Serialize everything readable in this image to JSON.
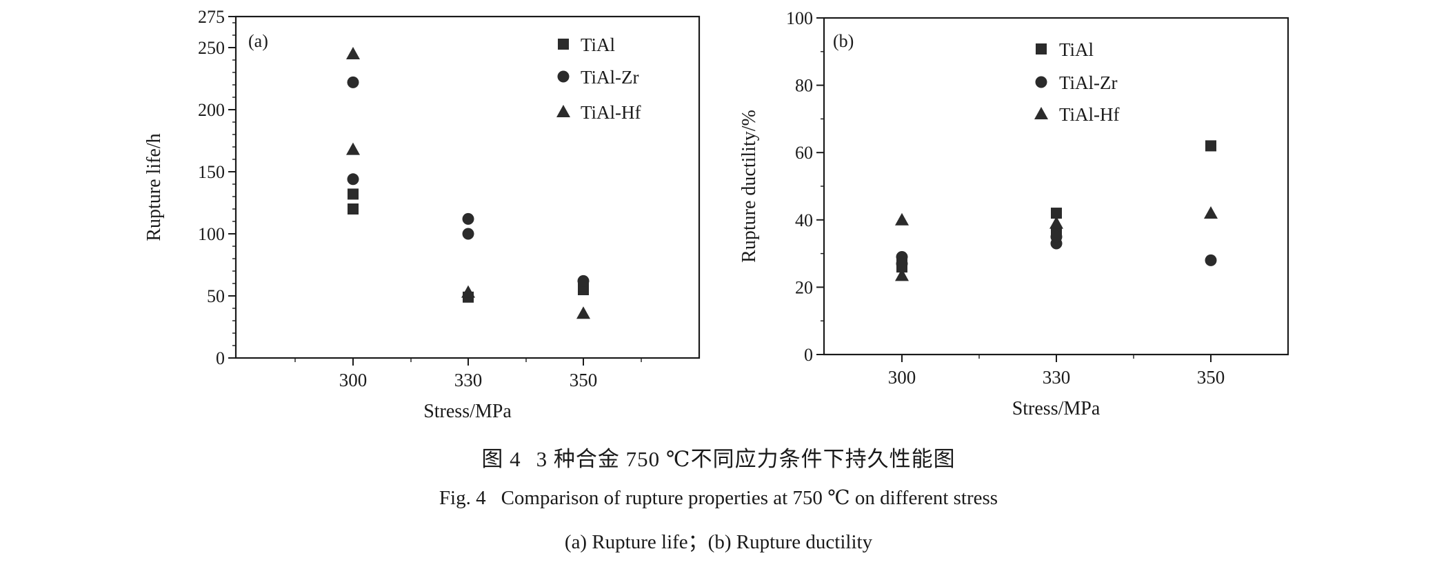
{
  "chart_data": [
    {
      "type": "scatter",
      "panel_label": "(a)",
      "xlabel": "Stress/MPa",
      "ylabel": "Rupture life/h",
      "categories": [
        "300",
        "330",
        "350"
      ],
      "ylim": [
        0,
        275
      ],
      "yticks": [
        0,
        50,
        100,
        150,
        200,
        250,
        275
      ],
      "ytick_labels": [
        "0",
        "50",
        "100",
        "150",
        "200",
        "250",
        "275"
      ],
      "legend_position": "top-right",
      "series": [
        {
          "name": "TiAl",
          "marker": "square",
          "points": [
            [
              300,
              132
            ],
            [
              300,
              120
            ],
            [
              330,
              49
            ],
            [
              350,
              55
            ],
            [
              350,
              58
            ]
          ]
        },
        {
          "name": "TiAl-Zr",
          "marker": "circle",
          "points": [
            [
              300,
              222
            ],
            [
              300,
              144
            ],
            [
              330,
              112
            ],
            [
              330,
              100
            ],
            [
              350,
              62
            ]
          ]
        },
        {
          "name": "TiAl-Hf",
          "marker": "triangle",
          "points": [
            [
              300,
              245
            ],
            [
              300,
              168
            ],
            [
              330,
              53
            ],
            [
              350,
              36
            ]
          ]
        }
      ]
    },
    {
      "type": "scatter",
      "panel_label": "(b)",
      "xlabel": "Stress/MPa",
      "ylabel": "Rupture ductility/%",
      "categories": [
        "300",
        "330",
        "350"
      ],
      "ylim": [
        0,
        100
      ],
      "yticks": [
        0,
        20,
        40,
        60,
        80,
        100
      ],
      "ytick_labels": [
        "0",
        "20",
        "40",
        "60",
        "80",
        "100"
      ],
      "legend_position": "top-center",
      "series": [
        {
          "name": "TiAl",
          "marker": "square",
          "points": [
            [
              300,
              26
            ],
            [
              300,
              28
            ],
            [
              330,
              42
            ],
            [
              330,
              36
            ],
            [
              350,
              62
            ]
          ]
        },
        {
          "name": "TiAl-Zr",
          "marker": "circle",
          "points": [
            [
              300,
              29
            ],
            [
              300,
              27
            ],
            [
              330,
              33
            ],
            [
              330,
              35
            ],
            [
              350,
              28
            ]
          ]
        },
        {
          "name": "TiAl-Hf",
          "marker": "triangle",
          "points": [
            [
              300,
              40
            ],
            [
              300,
              23.5
            ],
            [
              330,
              39
            ],
            [
              350,
              42
            ]
          ]
        }
      ]
    }
  ],
  "caption": {
    "figure_cn": "图 4",
    "title_cn": "3 种合金 750 ℃不同应力条件下持久性能图",
    "figure_en": "Fig. 4",
    "title_en": "Comparison of rupture properties at 750 ℃ on different stress",
    "subcaption": "(a) Rupture life；(b) Rupture ductility"
  },
  "colors": {
    "marker": "#2b2b2b",
    "axis": "#1a1a1a"
  }
}
